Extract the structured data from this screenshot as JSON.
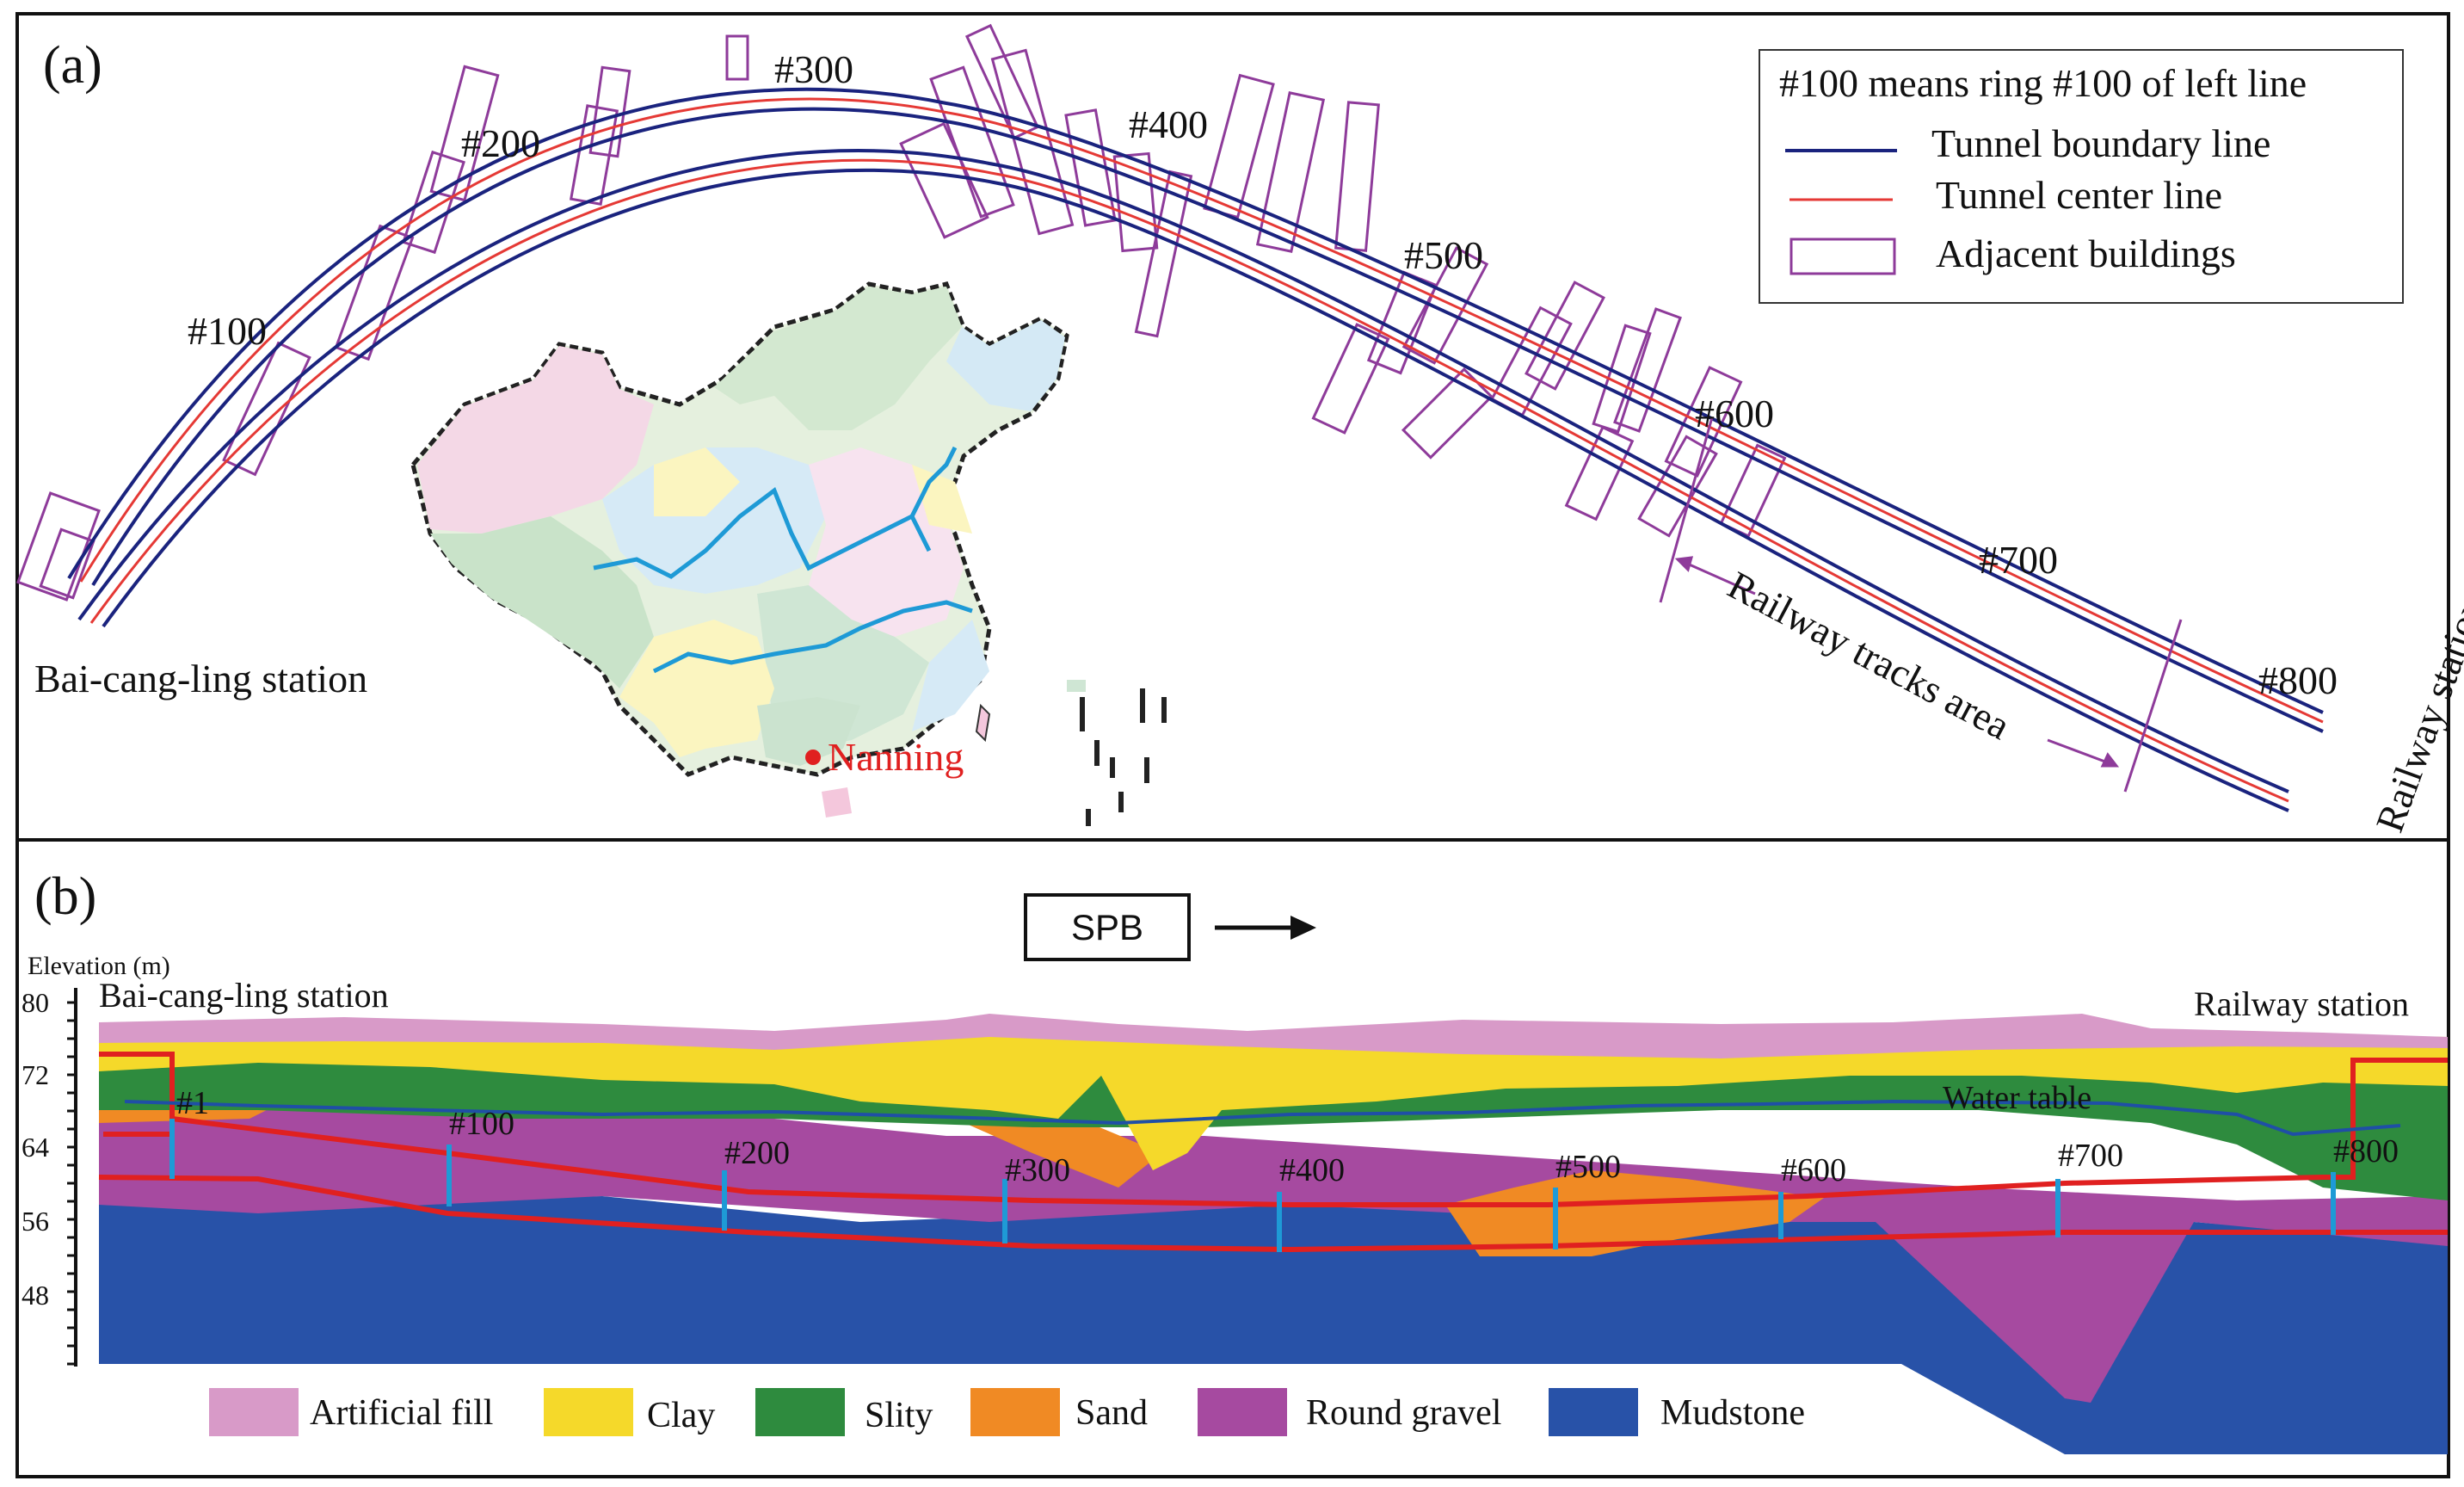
{
  "panel_a": {
    "label": "(a)",
    "start_station": "Bai-cang-ling station",
    "end_station": "Railway station",
    "railway_area": "Railway tracks area",
    "city": "Nanning",
    "ring_labels": [
      "#100",
      "#200",
      "#300",
      "#400",
      "#500",
      "#600",
      "#700",
      "#800"
    ],
    "legend": {
      "title": "#100 means ring #100 of left line",
      "boundary": "Tunnel boundary line",
      "center": "Tunnel center line",
      "buildings": "Adjacent buildings"
    },
    "colors": {
      "boundary": "#1a237e",
      "center": "#e53935",
      "buildings": "#8e3b9a"
    }
  },
  "panel_b": {
    "label": "(b)",
    "spb": "SPB",
    "arrow_icon": "right-arrow-icon",
    "axis_title": "Elevation (m)",
    "ticks": [
      "80",
      "72",
      "64",
      "56",
      "48"
    ],
    "start_station": "Bai-cang-ling station",
    "end_station": "Railway station",
    "water_table": "Water table",
    "ring_labels": [
      "#1",
      "#100",
      "#200",
      "#300",
      "#400",
      "#500",
      "#600",
      "#700",
      "#800"
    ],
    "legend": [
      {
        "name": "Artificial fill",
        "color": "#d89ac8"
      },
      {
        "name": "Clay",
        "color": "#f5d92a"
      },
      {
        "name": "Slity",
        "color": "#2e8b3e"
      },
      {
        "name": "Sand",
        "color": "#f08a24"
      },
      {
        "name": "Round gravel",
        "color": "#a64aa0"
      },
      {
        "name": "Mudstone",
        "color": "#2852a8"
      }
    ]
  }
}
